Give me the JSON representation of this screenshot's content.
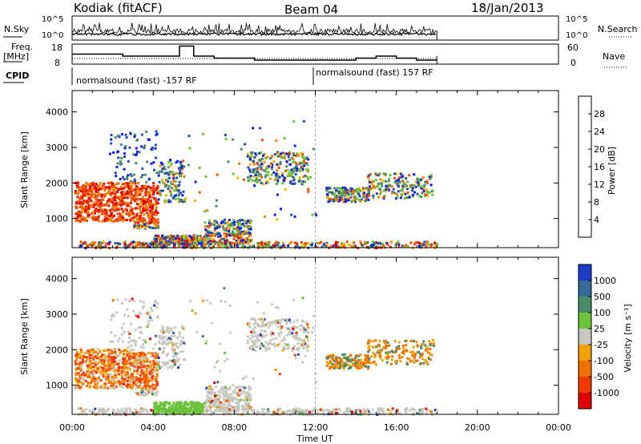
{
  "header": {
    "station": "Kodiak (fitACF)",
    "beam": "Beam 04",
    "date": "18/Jan/2013"
  },
  "panels": {
    "noise": {
      "left_label": "N.Sky",
      "right_label": "N.Search",
      "left_ticks": [
        "10^5",
        "10^0"
      ],
      "right_ticks": [
        "10^5",
        "10^0"
      ]
    },
    "freq": {
      "left_label_1": "Freq.",
      "left_label_2": "[MHz]",
      "right_label": "Nave",
      "left_ticks": [
        "18",
        "8"
      ],
      "right_ticks": [
        "60",
        "0"
      ]
    },
    "cpid": {
      "label": "CPID",
      "mode_1": "normalsound (fast) -157 RF",
      "mode_2": "normalsound (fast) 157 RF"
    }
  },
  "axes": {
    "ylabel": "Slant Range [km]",
    "xlabel": "Time UT",
    "x_ticks": [
      "00:00",
      "04:00",
      "08:00",
      "12:00",
      "16:00",
      "20:00",
      "00:00"
    ],
    "y_ticks": [
      "1000",
      "2000",
      "3000",
      "4000"
    ]
  },
  "colorbars": {
    "power": {
      "label": "Power [dB]",
      "ticks": [
        "4",
        "8",
        "12",
        "16",
        "20",
        "24",
        "28"
      ],
      "colors": [
        "#0a1ee6",
        "#2a4aa8",
        "#4e8a66",
        "#6cc23a",
        "#f0b400",
        "#f08000",
        "#f04a00",
        "#e00000"
      ]
    },
    "velocity": {
      "label": "Velocity [m s⁻¹]",
      "ticks": [
        "1000",
        "500",
        "100",
        "25",
        "-25",
        "-100",
        "-500",
        "-1000"
      ],
      "colors": [
        "#1e3cc8",
        "#3a6a9a",
        "#4a8a6a",
        "#6cc23a",
        "#c8c8c0",
        "#f0a000",
        "#f07000",
        "#f03a00",
        "#e00000"
      ]
    }
  },
  "chart_data": {
    "type": "heatmap",
    "title": "Kodiak (fitACF) Beam 04 18/Jan/2013",
    "x_range_hours": [
      0,
      24
    ],
    "y_range_km": [
      180,
      4600
    ],
    "xlabel": "Time UT",
    "ylabel": "Slant Range [km]",
    "panels": [
      "Power [dB]",
      "Velocity [m s⁻¹]"
    ],
    "data_end_hour": 18,
    "regions": [
      {
        "t": [
          0.0,
          3.0
        ],
        "r": [
          900,
          2050
        ],
        "power": "high (24-28 dB)",
        "velocity": "mixed -100 to -500"
      },
      {
        "t": [
          3.0,
          4.2
        ],
        "r": [
          700,
          2000
        ],
        "power": "high (20-28 dB)",
        "velocity": "-100 to -500"
      },
      {
        "t": [
          4.2,
          5.5
        ],
        "r": [
          1600,
          2600
        ],
        "power": "low (4-12 dB)",
        "velocity": "near 0"
      },
      {
        "t": [
          4.0,
          6.5
        ],
        "r": [
          250,
          550
        ],
        "power": "16-28 dB",
        "velocity": "100 to 500"
      },
      {
        "t": [
          6.5,
          8.8
        ],
        "r": [
          300,
          1000
        ],
        "power": "16-28 dB",
        "velocity": "near 0"
      },
      {
        "t": [
          8.5,
          11.5
        ],
        "r": [
          2000,
          2900
        ],
        "power": "4-12 dB",
        "velocity": "near 0"
      },
      {
        "t": [
          12.5,
          14.5
        ],
        "r": [
          1500,
          1900
        ],
        "power": "8-20 dB",
        "velocity": "-100 to -500"
      },
      {
        "t": [
          14.5,
          17.8
        ],
        "r": [
          1600,
          2300
        ],
        "power": "8-20 dB",
        "velocity": "-100 to -500"
      },
      {
        "t": [
          0,
          18
        ],
        "r": [
          200,
          350
        ],
        "power": "4-16 dB",
        "velocity": "mixed"
      }
    ],
    "frequency_mhz": [
      {
        "t": 0.0,
        "v": 13
      },
      {
        "t": 2.5,
        "v": 12
      },
      {
        "t": 5.3,
        "v": 17
      },
      {
        "t": 6.0,
        "v": 12
      },
      {
        "t": 7.0,
        "v": 11
      },
      {
        "t": 9.0,
        "v": 10
      },
      {
        "t": 14.0,
        "v": 11
      },
      {
        "t": 15.0,
        "v": 12
      },
      {
        "t": 16.0,
        "v": 11
      },
      {
        "t": 17.0,
        "v": 10
      },
      {
        "t": 18.0,
        "v": 10
      }
    ],
    "cpid_boundary_hour": 12.0
  }
}
